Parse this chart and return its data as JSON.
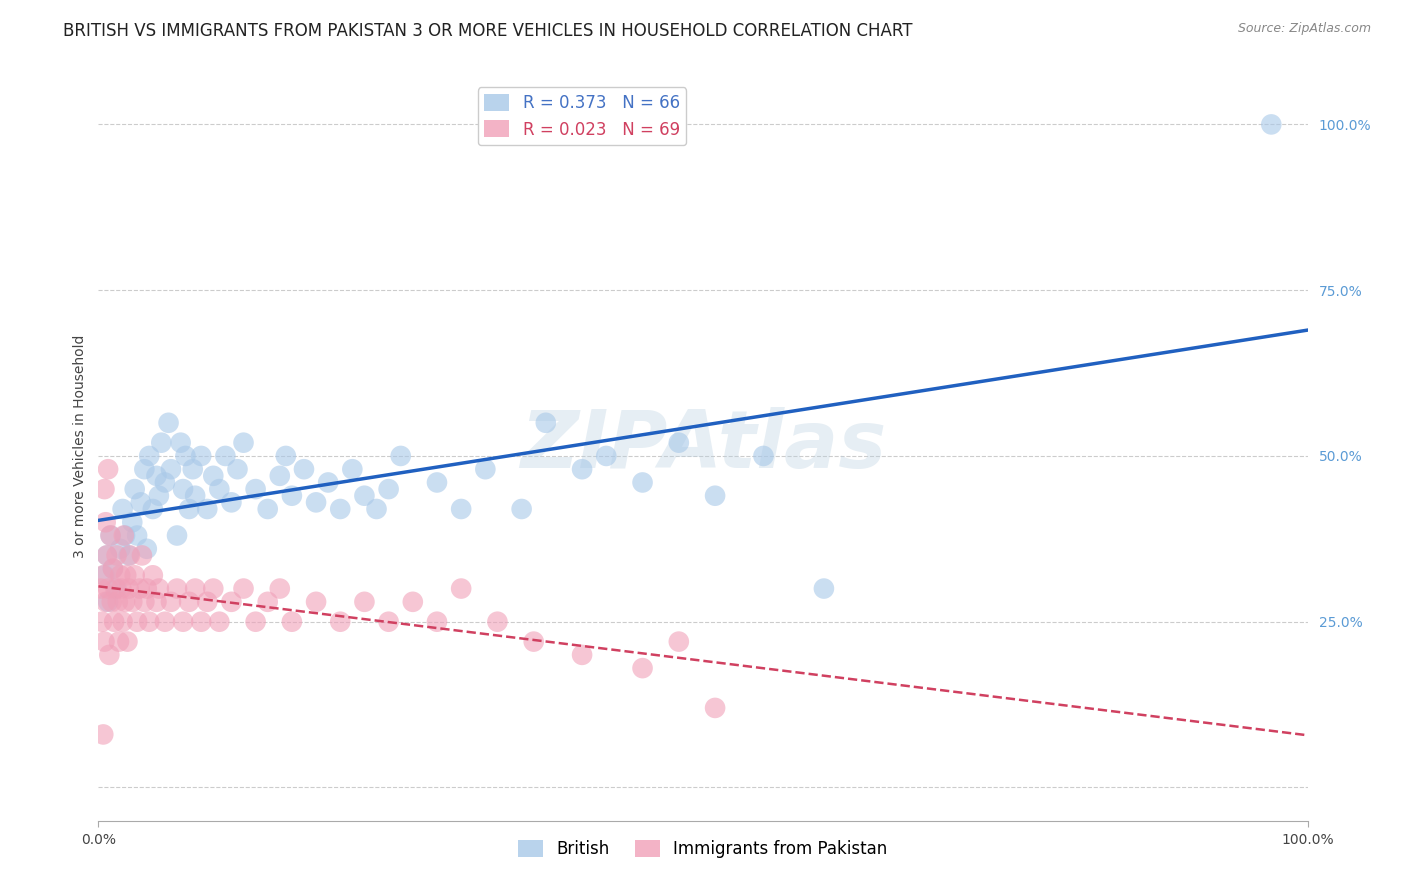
{
  "title": "BRITISH VS IMMIGRANTS FROM PAKISTAN 3 OR MORE VEHICLES IN HOUSEHOLD CORRELATION CHART",
  "source": "Source: ZipAtlas.com",
  "ylabel": "3 or more Vehicles in Household",
  "watermark": "ZIPAtlas",
  "legend_r1": "R = 0.373   N = 66",
  "legend_r2": "R = 0.023   N = 69",
  "bottom_legend": [
    "British",
    "Immigrants from Pakistan"
  ],
  "british_color": "#a8c8e8",
  "pakistan_color": "#f0a0b8",
  "blue_line_color": "#2060c0",
  "red_line_color": "#d04060",
  "background_color": "#ffffff",
  "grid_color": "#cccccc",
  "xlim": [
    0,
    1.0
  ],
  "ylim": [
    -0.05,
    1.08
  ],
  "ytick_positions": [
    0.0,
    0.25,
    0.5,
    0.75,
    1.0
  ],
  "ytick_labels": [
    "",
    "25.0%",
    "50.0%",
    "75.0%",
    "100.0%"
  ],
  "british_x": [
    0.005,
    0.007,
    0.008,
    0.01,
    0.012,
    0.015,
    0.018,
    0.02,
    0.022,
    0.025,
    0.028,
    0.03,
    0.032,
    0.035,
    0.038,
    0.04,
    0.042,
    0.045,
    0.048,
    0.05,
    0.052,
    0.055,
    0.058,
    0.06,
    0.065,
    0.068,
    0.07,
    0.072,
    0.075,
    0.078,
    0.08,
    0.085,
    0.09,
    0.095,
    0.1,
    0.105,
    0.11,
    0.115,
    0.12,
    0.13,
    0.14,
    0.15,
    0.155,
    0.16,
    0.17,
    0.18,
    0.19,
    0.2,
    0.21,
    0.22,
    0.23,
    0.24,
    0.25,
    0.28,
    0.3,
    0.32,
    0.35,
    0.37,
    0.4,
    0.42,
    0.45,
    0.48,
    0.51,
    0.55,
    0.6,
    0.97
  ],
  "british_y": [
    0.32,
    0.35,
    0.28,
    0.38,
    0.33,
    0.3,
    0.36,
    0.42,
    0.38,
    0.35,
    0.4,
    0.45,
    0.38,
    0.43,
    0.48,
    0.36,
    0.5,
    0.42,
    0.47,
    0.44,
    0.52,
    0.46,
    0.55,
    0.48,
    0.38,
    0.52,
    0.45,
    0.5,
    0.42,
    0.48,
    0.44,
    0.5,
    0.42,
    0.47,
    0.45,
    0.5,
    0.43,
    0.48,
    0.52,
    0.45,
    0.42,
    0.47,
    0.5,
    0.44,
    0.48,
    0.43,
    0.46,
    0.42,
    0.48,
    0.44,
    0.42,
    0.45,
    0.5,
    0.46,
    0.42,
    0.48,
    0.42,
    0.55,
    0.48,
    0.5,
    0.46,
    0.52,
    0.44,
    0.5,
    0.3,
    1.0
  ],
  "pakistan_x": [
    0.002,
    0.003,
    0.004,
    0.005,
    0.006,
    0.007,
    0.008,
    0.009,
    0.01,
    0.011,
    0.012,
    0.013,
    0.014,
    0.015,
    0.016,
    0.017,
    0.018,
    0.019,
    0.02,
    0.021,
    0.022,
    0.023,
    0.024,
    0.025,
    0.026,
    0.028,
    0.03,
    0.032,
    0.034,
    0.036,
    0.038,
    0.04,
    0.042,
    0.045,
    0.048,
    0.05,
    0.055,
    0.06,
    0.065,
    0.07,
    0.075,
    0.08,
    0.085,
    0.09,
    0.095,
    0.1,
    0.11,
    0.12,
    0.13,
    0.14,
    0.15,
    0.16,
    0.18,
    0.2,
    0.22,
    0.24,
    0.26,
    0.28,
    0.3,
    0.33,
    0.36,
    0.4,
    0.45,
    0.48,
    0.51,
    0.005,
    0.006,
    0.008,
    0.004
  ],
  "pakistan_y": [
    0.3,
    0.25,
    0.32,
    0.22,
    0.28,
    0.35,
    0.3,
    0.2,
    0.38,
    0.28,
    0.33,
    0.25,
    0.3,
    0.35,
    0.28,
    0.22,
    0.32,
    0.3,
    0.25,
    0.38,
    0.28,
    0.32,
    0.22,
    0.3,
    0.35,
    0.28,
    0.32,
    0.25,
    0.3,
    0.35,
    0.28,
    0.3,
    0.25,
    0.32,
    0.28,
    0.3,
    0.25,
    0.28,
    0.3,
    0.25,
    0.28,
    0.3,
    0.25,
    0.28,
    0.3,
    0.25,
    0.28,
    0.3,
    0.25,
    0.28,
    0.3,
    0.25,
    0.28,
    0.25,
    0.28,
    0.25,
    0.28,
    0.25,
    0.3,
    0.25,
    0.22,
    0.2,
    0.18,
    0.22,
    0.12,
    0.45,
    0.4,
    0.48,
    0.08
  ],
  "title_fontsize": 12,
  "axis_fontsize": 10,
  "tick_fontsize": 10,
  "legend_fontsize": 12
}
